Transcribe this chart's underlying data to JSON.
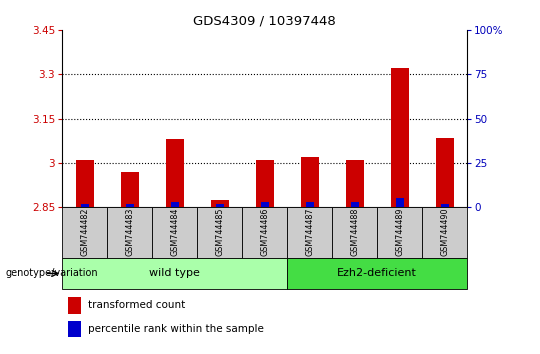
{
  "title": "GDS4309 / 10397448",
  "samples": [
    "GSM744482",
    "GSM744483",
    "GSM744484",
    "GSM744485",
    "GSM744486",
    "GSM744487",
    "GSM744488",
    "GSM744489",
    "GSM744490"
  ],
  "transformed_counts": [
    3.01,
    2.97,
    3.08,
    2.875,
    3.01,
    3.02,
    3.01,
    3.32,
    3.085
  ],
  "percentile_ranks": [
    2,
    2,
    3,
    2,
    3,
    3,
    3,
    5,
    2
  ],
  "baseline": 2.85,
  "ylim_left": [
    2.85,
    3.45
  ],
  "ylim_right": [
    0,
    100
  ],
  "yticks_left": [
    2.85,
    3.0,
    3.15,
    3.3,
    3.45
  ],
  "yticks_right": [
    0,
    25,
    50,
    75,
    100
  ],
  "ytick_labels_left": [
    "2.85",
    "3",
    "3.15",
    "3.3",
    "3.45"
  ],
  "ytick_labels_right": [
    "0",
    "25",
    "50",
    "75",
    "100%"
  ],
  "dotted_lines": [
    3.0,
    3.15,
    3.3
  ],
  "wild_type_range": [
    0,
    4
  ],
  "ezh2_range": [
    5,
    8
  ],
  "wild_type_label": "wild type",
  "ezh2_label": "Ezh2-deficient",
  "genotype_label": "genotype/variation",
  "legend_red": "transformed count",
  "legend_blue": "percentile rank within the sample",
  "bar_color_red": "#cc0000",
  "bar_color_blue": "#0000cc",
  "left_tick_color": "#cc0000",
  "right_tick_color": "#0000bb",
  "wt_bg": "#aaffaa",
  "ezh2_bg": "#44dd44",
  "sample_bg": "#cccccc",
  "bar_width": 0.4,
  "blue_bar_width": 0.18
}
